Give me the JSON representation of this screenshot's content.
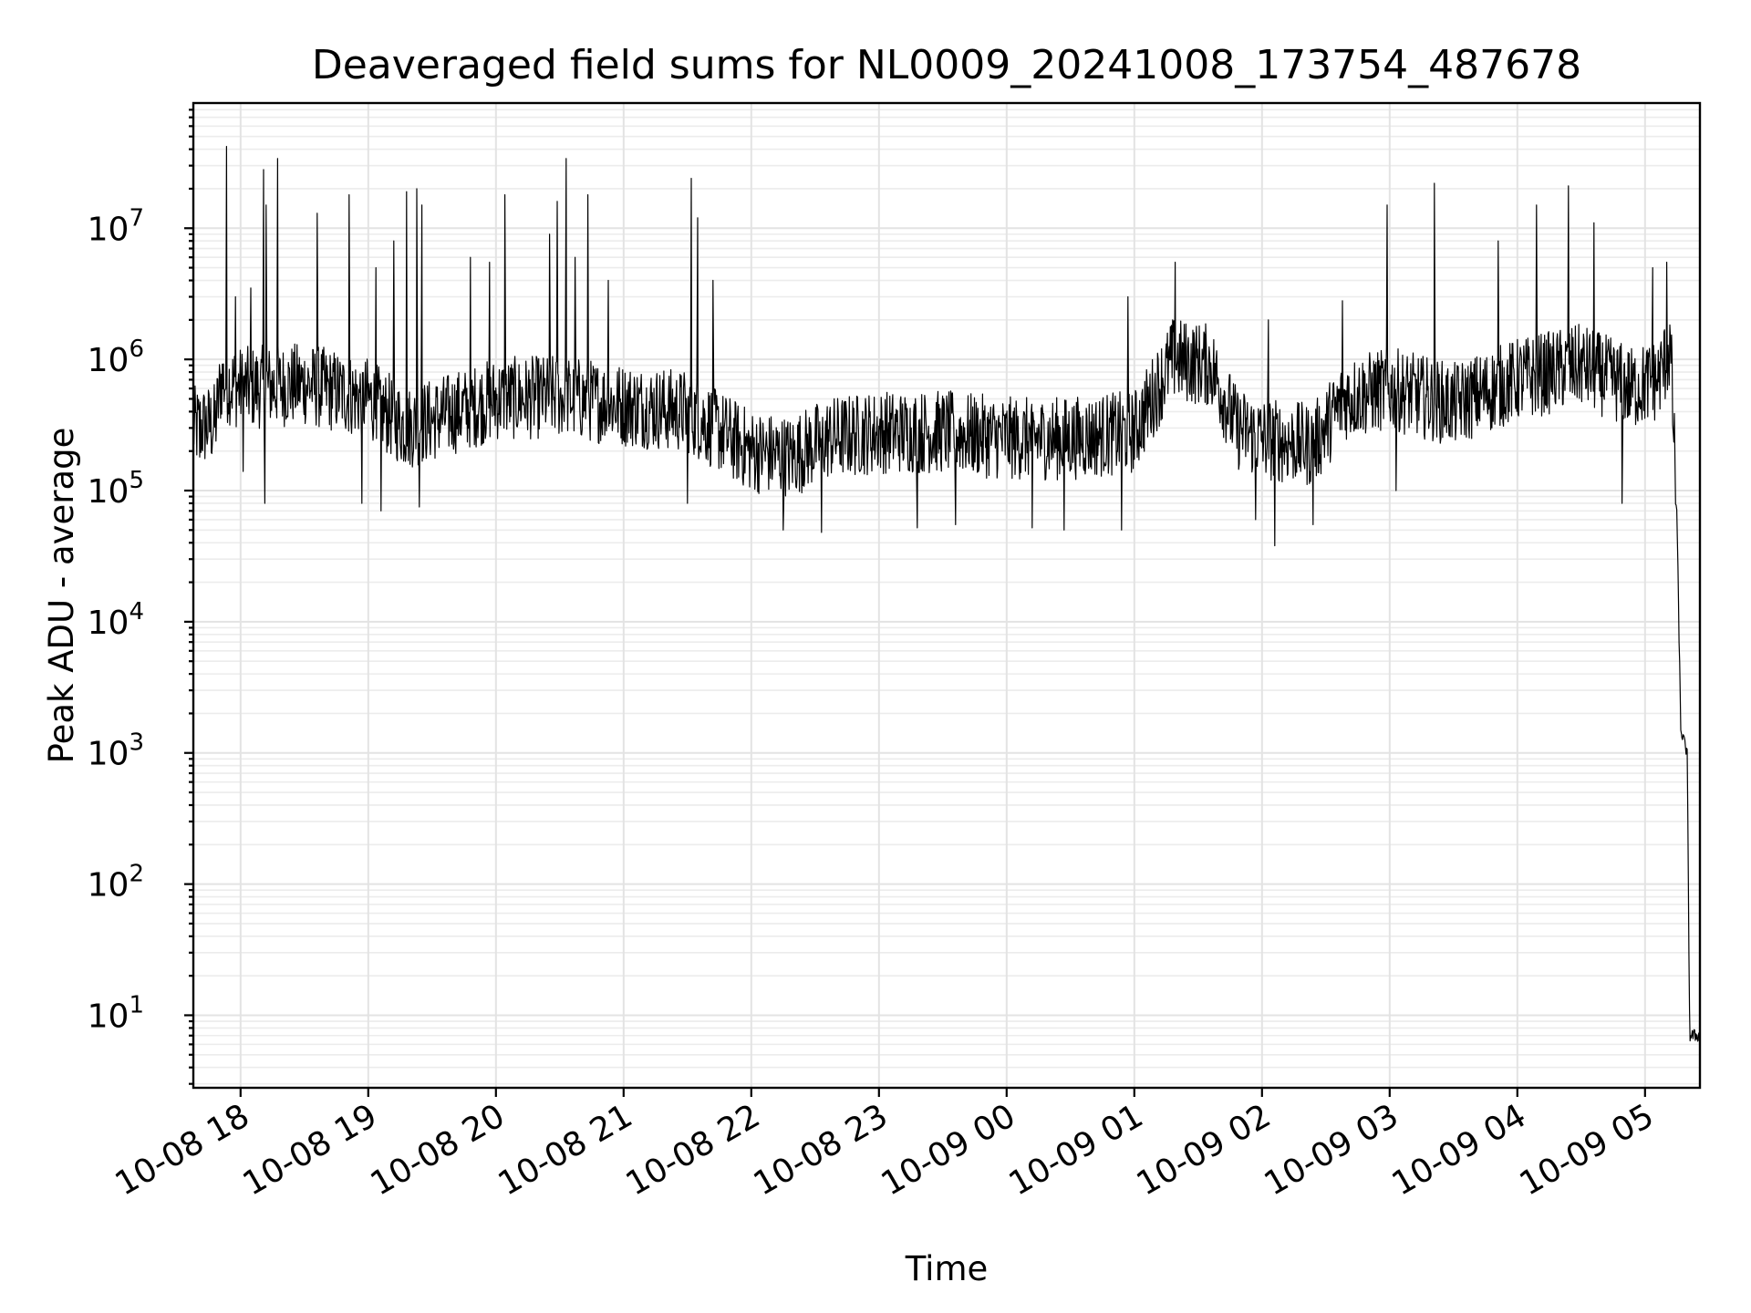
{
  "chart_data": {
    "type": "line",
    "title": "Deaveraged field sums for NL0009_20241008_173754_487678",
    "xlabel": "Time",
    "ylabel": "Peak ADU - average",
    "yscale": "log",
    "ylim": [
      2.8,
      90000000
    ],
    "xlim_hours": [
      -0.37,
      11.43
    ],
    "grid": true,
    "x_ticks": [
      {
        "label": "10-08 18",
        "hour": 0
      },
      {
        "label": "10-08 19",
        "hour": 1
      },
      {
        "label": "10-08 20",
        "hour": 2
      },
      {
        "label": "10-08 21",
        "hour": 3
      },
      {
        "label": "10-08 22",
        "hour": 4
      },
      {
        "label": "10-08 23",
        "hour": 5
      },
      {
        "label": "10-09 00",
        "hour": 6
      },
      {
        "label": "10-09 01",
        "hour": 7
      },
      {
        "label": "10-09 02",
        "hour": 8
      },
      {
        "label": "10-09 03",
        "hour": 9
      },
      {
        "label": "10-09 04",
        "hour": 10
      },
      {
        "label": "10-09 05",
        "hour": 11
      }
    ],
    "y_ticks": [
      {
        "base": "10",
        "exp": "1",
        "value": 10
      },
      {
        "base": "10",
        "exp": "2",
        "value": 100
      },
      {
        "base": "10",
        "exp": "3",
        "value": 1000
      },
      {
        "base": "10",
        "exp": "4",
        "value": 10000
      },
      {
        "base": "10",
        "exp": "5",
        "value": 100000
      },
      {
        "base": "10",
        "exp": "6",
        "value": 1000000
      },
      {
        "base": "10",
        "exp": "7",
        "value": 10000000
      }
    ],
    "series": [
      {
        "name": "Peak ADU - average",
        "color": "#000000",
        "baseline": [
          [
            -0.37,
            300000
          ],
          [
            -0.2,
            320000
          ],
          [
            -0.15,
            700000
          ],
          [
            0.0,
            600000
          ],
          [
            0.5,
            650000
          ],
          [
            1.0,
            500000
          ],
          [
            1.3,
            300000
          ],
          [
            1.7,
            400000
          ],
          [
            2.0,
            500000
          ],
          [
            2.5,
            520000
          ],
          [
            3.0,
            450000
          ],
          [
            3.5,
            400000
          ],
          [
            4.0,
            200000
          ],
          [
            4.3,
            180000
          ],
          [
            4.6,
            250000
          ],
          [
            5.0,
            280000
          ],
          [
            5.5,
            280000
          ],
          [
            6.0,
            250000
          ],
          [
            6.5,
            250000
          ],
          [
            7.0,
            280000
          ],
          [
            7.3,
            1000000
          ],
          [
            7.6,
            900000
          ],
          [
            7.8,
            300000
          ],
          [
            8.0,
            250000
          ],
          [
            8.4,
            220000
          ],
          [
            8.65,
            500000
          ],
          [
            9.0,
            600000
          ],
          [
            9.5,
            450000
          ],
          [
            10.0,
            700000
          ],
          [
            10.5,
            900000
          ],
          [
            10.9,
            600000
          ],
          [
            11.1,
            700000
          ],
          [
            11.2,
            1200000
          ],
          [
            11.25,
            60000
          ],
          [
            11.28,
            1500
          ],
          [
            11.33,
            1000
          ],
          [
            11.35,
            7
          ],
          [
            11.43,
            7
          ]
        ],
        "spikes": [
          [
            -0.11,
            42000000
          ],
          [
            -0.04,
            3000000
          ],
          [
            0.08,
            3500000
          ],
          [
            0.18,
            28000000
          ],
          [
            0.2,
            15000000
          ],
          [
            0.29,
            34000000
          ],
          [
            0.6,
            13000000
          ],
          [
            0.85,
            18000000
          ],
          [
            1.06,
            5000000
          ],
          [
            1.2,
            8000000
          ],
          [
            1.3,
            19000000
          ],
          [
            1.38,
            20000000
          ],
          [
            1.42,
            15000000
          ],
          [
            1.8,
            6000000
          ],
          [
            1.95,
            5500000
          ],
          [
            2.07,
            18000000
          ],
          [
            2.42,
            9000000
          ],
          [
            2.48,
            16000000
          ],
          [
            2.55,
            34000000
          ],
          [
            2.62,
            6000000
          ],
          [
            2.72,
            18000000
          ],
          [
            2.88,
            4000000
          ],
          [
            3.5,
            14000000
          ],
          [
            3.53,
            24000000
          ],
          [
            3.58,
            12000000
          ],
          [
            3.7,
            4000000
          ],
          [
            6.45,
            3000000
          ],
          [
            6.95,
            3000000
          ],
          [
            7.32,
            5500000
          ],
          [
            8.05,
            2000000
          ],
          [
            8.63,
            2800000
          ],
          [
            8.98,
            15000000
          ],
          [
            9.35,
            22000000
          ],
          [
            9.85,
            8000000
          ],
          [
            10.15,
            15000000
          ],
          [
            10.4,
            21000000
          ],
          [
            10.6,
            11000000
          ],
          [
            10.82,
            11000000
          ],
          [
            11.06,
            5000000
          ],
          [
            11.17,
            5500000
          ]
        ],
        "dips": [
          [
            -0.32,
            180000
          ],
          [
            0.02,
            140000
          ],
          [
            0.19,
            80000
          ],
          [
            0.95,
            80000
          ],
          [
            1.1,
            70000
          ],
          [
            1.4,
            75000
          ],
          [
            3.5,
            80000
          ],
          [
            4.25,
            50000
          ],
          [
            4.55,
            48000
          ],
          [
            5.3,
            52000
          ],
          [
            5.6,
            55000
          ],
          [
            6.2,
            52000
          ],
          [
            6.45,
            50000
          ],
          [
            6.9,
            50000
          ],
          [
            7.95,
            60000
          ],
          [
            8.1,
            38000
          ],
          [
            8.4,
            55000
          ],
          [
            9.05,
            100000
          ],
          [
            10.82,
            80000
          ]
        ]
      }
    ]
  }
}
